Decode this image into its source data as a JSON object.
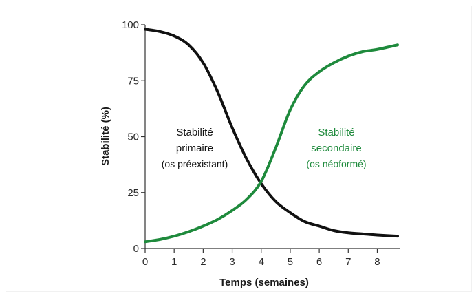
{
  "chart_data": {
    "type": "line",
    "title": "",
    "xlabel": "Temps (semaines)",
    "ylabel": "Stabilité (%)",
    "xlim": [
      0,
      8.7
    ],
    "ylim": [
      0,
      100
    ],
    "xticks": [
      0,
      1,
      2,
      3,
      4,
      5,
      6,
      7,
      8
    ],
    "yticks": [
      0,
      25,
      50,
      75,
      100
    ],
    "grid": false,
    "legend": "none",
    "series": [
      {
        "color": "#111111",
        "x": [
          0,
          0.5,
          1,
          1.5,
          2,
          2.5,
          3,
          3.5,
          4,
          4.5,
          5,
          5.5,
          6,
          6.5,
          7,
          7.5,
          8,
          8.7
        ],
        "y": [
          98,
          97,
          95,
          91,
          83,
          70,
          54,
          40,
          29,
          21,
          16,
          12,
          10,
          8,
          7,
          6.5,
          6,
          5.5
        ]
      },
      {
        "color": "#1e8a3c",
        "x": [
          0,
          0.5,
          1,
          1.5,
          2,
          2.5,
          3,
          3.5,
          4,
          4.5,
          5,
          5.5,
          6,
          6.5,
          7,
          7.5,
          8,
          8.7
        ],
        "y": [
          3,
          4,
          5.5,
          7.5,
          10,
          13,
          17,
          22,
          30,
          45,
          62,
          73,
          79,
          83,
          86,
          88,
          89,
          91
        ]
      }
    ],
    "annotations": [
      {
        "id": "primary",
        "color": "#111111",
        "lines": [
          "Stabilité",
          "primaire",
          "(os préexistant)"
        ]
      },
      {
        "id": "secondary",
        "color": "#1e8a3c",
        "lines": [
          "Stabilité",
          "secondaire",
          "(os néoformé)"
        ]
      }
    ]
  }
}
